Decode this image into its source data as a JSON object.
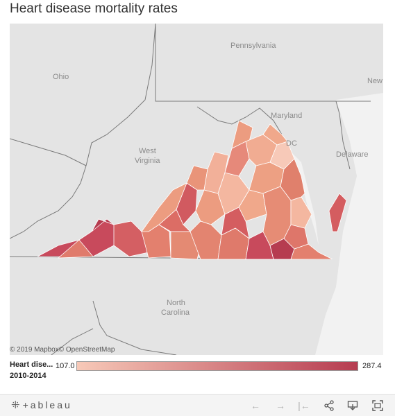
{
  "title": "Heart disease mortality rates",
  "map": {
    "state_labels": {
      "pennsylvania": "Pennsylvania",
      "ohio": "Ohio",
      "maryland": "Maryland",
      "dc": "DC",
      "west_virginia_1": "West",
      "west_virginia_2": "Virginia",
      "delaware": "Delaware",
      "new_jersey_partial": "New",
      "north_carolina_1": "North",
      "north_carolina_2": "Carolina"
    },
    "attribution": "© 2019 Mapbox© OpenStreetMap"
  },
  "legend": {
    "title_line1": "Heart dise...",
    "title_line2": "2010-2014",
    "min": "107.0",
    "max": "287.4",
    "color_low": "#f7c9b8",
    "color_high": "#b63c50"
  },
  "colors": {
    "land": "#e4e4e4",
    "water": "#f2f2f2",
    "border": "#7a7a7a",
    "county_stroke": "#ffffff"
  },
  "toolbar": {
    "brand": "+ableau",
    "brand_mark": "⁜",
    "undo_icon": "←",
    "redo_icon": "→",
    "revert_icon": "|←",
    "share_icon": "share",
    "download_icon": "download",
    "fullscreen_icon": "fullscreen"
  }
}
